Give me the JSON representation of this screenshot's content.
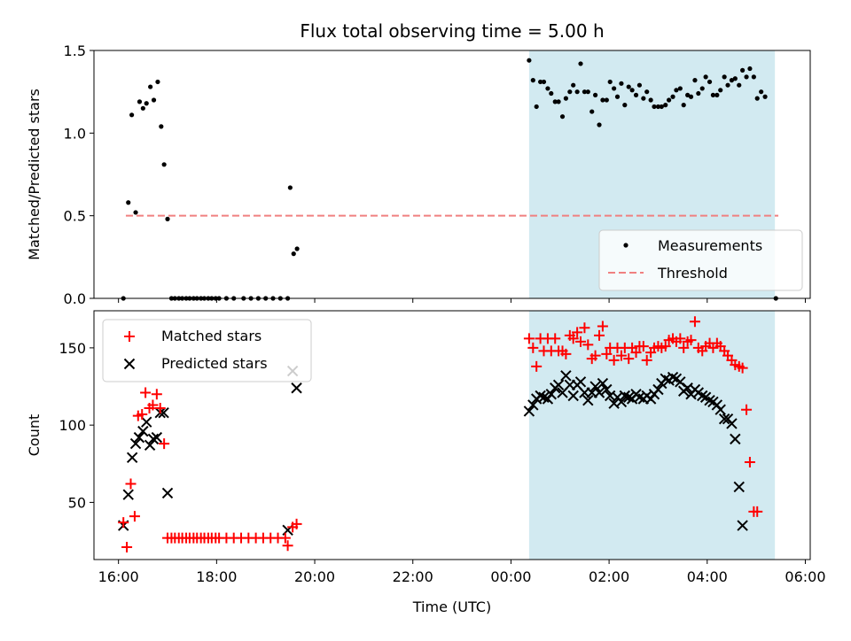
{
  "chart_data": {
    "type": "scatter",
    "title": "Flux total observing time = 5.00 h",
    "xlabel": "Time (UTC)",
    "x_unit": "hours since 16:00 UTC",
    "xlim": [
      -0.5,
      14.1
    ],
    "x_ticks": [
      {
        "v": 0,
        "label": "16:00"
      },
      {
        "v": 2,
        "label": "18:00"
      },
      {
        "v": 4,
        "label": "20:00"
      },
      {
        "v": 6,
        "label": "22:00"
      },
      {
        "v": 8,
        "label": "00:00"
      },
      {
        "v": 10,
        "label": "02:00"
      },
      {
        "v": 12,
        "label": "04:00"
      },
      {
        "v": 14,
        "label": "06:00"
      }
    ],
    "shaded_region": {
      "x_start": 8.37,
      "x_end": 13.38,
      "color": "#add8e6"
    },
    "top": {
      "ylabel": "Matched/Predicted stars",
      "ylim": [
        0,
        1.5
      ],
      "y_ticks": [
        {
          "v": 0,
          "label": "0.0"
        },
        {
          "v": 0.5,
          "label": "0.5"
        },
        {
          "v": 1.0,
          "label": "1.0"
        },
        {
          "v": 1.5,
          "label": "1.5"
        }
      ],
      "legend": [
        {
          "name": "Measurements",
          "marker": "dot"
        },
        {
          "name": "Threshold",
          "marker": "dashed-line"
        }
      ],
      "threshold": {
        "value": 0.5,
        "x_start": 0.15,
        "x_end": 13.45,
        "color": "#f08080"
      },
      "measurements": [
        [
          0.1,
          0.0
        ],
        [
          0.2,
          0.58
        ],
        [
          0.27,
          1.11
        ],
        [
          0.35,
          0.52
        ],
        [
          0.43,
          1.19
        ],
        [
          0.5,
          1.15
        ],
        [
          0.57,
          1.18
        ],
        [
          0.65,
          1.28
        ],
        [
          0.72,
          1.2
        ],
        [
          0.8,
          1.31
        ],
        [
          0.87,
          1.04
        ],
        [
          0.93,
          0.81
        ],
        [
          1.0,
          0.48
        ],
        [
          1.08,
          0.0
        ],
        [
          1.15,
          0.0
        ],
        [
          1.23,
          0.0
        ],
        [
          1.3,
          0.0
        ],
        [
          1.38,
          0.0
        ],
        [
          1.45,
          0.0
        ],
        [
          1.53,
          0.0
        ],
        [
          1.6,
          0.0
        ],
        [
          1.68,
          0.0
        ],
        [
          1.75,
          0.0
        ],
        [
          1.83,
          0.0
        ],
        [
          1.9,
          0.0
        ],
        [
          1.98,
          0.0
        ],
        [
          2.05,
          0.0
        ],
        [
          2.2,
          0.0
        ],
        [
          2.35,
          0.0
        ],
        [
          2.55,
          0.0
        ],
        [
          2.7,
          0.0
        ],
        [
          2.85,
          0.0
        ],
        [
          3.0,
          0.0
        ],
        [
          3.15,
          0.0
        ],
        [
          3.3,
          0.0
        ],
        [
          3.45,
          0.0
        ],
        [
          3.5,
          0.67
        ],
        [
          3.57,
          0.27
        ],
        [
          3.64,
          0.3
        ],
        [
          8.37,
          1.44
        ],
        [
          8.45,
          1.32
        ],
        [
          8.52,
          1.16
        ],
        [
          8.6,
          1.31
        ],
        [
          8.67,
          1.31
        ],
        [
          8.75,
          1.27
        ],
        [
          8.82,
          1.24
        ],
        [
          8.9,
          1.19
        ],
        [
          8.97,
          1.19
        ],
        [
          9.05,
          1.1
        ],
        [
          9.12,
          1.21
        ],
        [
          9.2,
          1.25
        ],
        [
          9.27,
          1.29
        ],
        [
          9.35,
          1.25
        ],
        [
          9.42,
          1.42
        ],
        [
          9.5,
          1.25
        ],
        [
          9.57,
          1.25
        ],
        [
          9.65,
          1.13
        ],
        [
          9.72,
          1.23
        ],
        [
          9.8,
          1.05
        ],
        [
          9.87,
          1.2
        ],
        [
          9.95,
          1.2
        ],
        [
          10.02,
          1.31
        ],
        [
          10.1,
          1.27
        ],
        [
          10.17,
          1.22
        ],
        [
          10.25,
          1.3
        ],
        [
          10.32,
          1.17
        ],
        [
          10.4,
          1.28
        ],
        [
          10.47,
          1.26
        ],
        [
          10.55,
          1.23
        ],
        [
          10.62,
          1.29
        ],
        [
          10.7,
          1.21
        ],
        [
          10.77,
          1.25
        ],
        [
          10.85,
          1.2
        ],
        [
          10.92,
          1.16
        ],
        [
          11.0,
          1.16
        ],
        [
          11.07,
          1.16
        ],
        [
          11.15,
          1.17
        ],
        [
          11.22,
          1.2
        ],
        [
          11.3,
          1.22
        ],
        [
          11.37,
          1.26
        ],
        [
          11.45,
          1.27
        ],
        [
          11.52,
          1.17
        ],
        [
          11.6,
          1.23
        ],
        [
          11.67,
          1.22
        ],
        [
          11.75,
          1.32
        ],
        [
          11.82,
          1.24
        ],
        [
          11.9,
          1.27
        ],
        [
          11.97,
          1.34
        ],
        [
          12.05,
          1.31
        ],
        [
          12.12,
          1.23
        ],
        [
          12.2,
          1.23
        ],
        [
          12.27,
          1.26
        ],
        [
          12.35,
          1.34
        ],
        [
          12.42,
          1.29
        ],
        [
          12.5,
          1.32
        ],
        [
          12.57,
          1.33
        ],
        [
          12.65,
          1.29
        ],
        [
          12.72,
          1.38
        ],
        [
          12.8,
          1.34
        ],
        [
          12.87,
          1.39
        ],
        [
          12.95,
          1.34
        ],
        [
          13.02,
          1.21
        ],
        [
          13.1,
          1.25
        ],
        [
          13.18,
          1.22
        ],
        [
          13.4,
          0.0
        ]
      ]
    },
    "bottom": {
      "ylabel": "Count",
      "ylim": [
        13,
        174
      ],
      "y_ticks": [
        {
          "v": 50,
          "label": "50"
        },
        {
          "v": 100,
          "label": "100"
        },
        {
          "v": 150,
          "label": "150"
        }
      ],
      "legend": [
        {
          "name": "Matched stars",
          "marker": "plus",
          "color": "#ff0000"
        },
        {
          "name": "Predicted stars",
          "marker": "x",
          "color": "#000000"
        }
      ],
      "matched": [
        [
          0.1,
          37
        ],
        [
          0.17,
          21
        ],
        [
          0.25,
          62
        ],
        [
          0.33,
          41
        ],
        [
          0.4,
          106
        ],
        [
          0.48,
          107
        ],
        [
          0.55,
          121
        ],
        [
          0.63,
          111
        ],
        [
          0.7,
          113
        ],
        [
          0.78,
          120
        ],
        [
          0.85,
          111
        ],
        [
          0.93,
          88
        ],
        [
          1.0,
          27
        ],
        [
          1.08,
          27
        ],
        [
          1.15,
          27
        ],
        [
          1.23,
          27
        ],
        [
          1.3,
          27
        ],
        [
          1.38,
          27
        ],
        [
          1.45,
          27
        ],
        [
          1.53,
          27
        ],
        [
          1.6,
          27
        ],
        [
          1.68,
          27
        ],
        [
          1.75,
          27
        ],
        [
          1.83,
          27
        ],
        [
          1.9,
          27
        ],
        [
          1.98,
          27
        ],
        [
          2.05,
          27
        ],
        [
          2.2,
          27
        ],
        [
          2.35,
          27
        ],
        [
          2.5,
          27
        ],
        [
          2.65,
          27
        ],
        [
          2.8,
          27
        ],
        [
          2.95,
          27
        ],
        [
          3.1,
          27
        ],
        [
          3.25,
          27
        ],
        [
          3.4,
          27
        ],
        [
          3.45,
          22
        ],
        [
          3.55,
          34
        ],
        [
          3.63,
          36
        ],
        [
          8.37,
          156
        ],
        [
          8.45,
          150
        ],
        [
          8.52,
          138
        ],
        [
          8.6,
          156
        ],
        [
          8.67,
          148
        ],
        [
          8.75,
          156
        ],
        [
          8.82,
          148
        ],
        [
          8.9,
          156
        ],
        [
          8.97,
          148
        ],
        [
          9.05,
          148
        ],
        [
          9.12,
          146
        ],
        [
          9.2,
          158
        ],
        [
          9.27,
          156
        ],
        [
          9.35,
          160
        ],
        [
          9.42,
          154
        ],
        [
          9.5,
          163
        ],
        [
          9.57,
          152
        ],
        [
          9.65,
          143
        ],
        [
          9.72,
          145
        ],
        [
          9.8,
          158
        ],
        [
          9.87,
          164
        ],
        [
          9.95,
          146
        ],
        [
          10.02,
          150
        ],
        [
          10.1,
          142
        ],
        [
          10.17,
          150
        ],
        [
          10.25,
          145
        ],
        [
          10.32,
          150
        ],
        [
          10.4,
          143
        ],
        [
          10.47,
          150
        ],
        [
          10.55,
          147
        ],
        [
          10.62,
          151
        ],
        [
          10.7,
          151
        ],
        [
          10.77,
          142
        ],
        [
          10.85,
          147
        ],
        [
          10.92,
          150
        ],
        [
          11.0,
          151
        ],
        [
          11.07,
          150
        ],
        [
          11.15,
          151
        ],
        [
          11.22,
          155
        ],
        [
          11.3,
          156
        ],
        [
          11.37,
          154
        ],
        [
          11.45,
          156
        ],
        [
          11.52,
          150
        ],
        [
          11.6,
          154
        ],
        [
          11.67,
          155
        ],
        [
          11.75,
          167
        ],
        [
          11.82,
          150
        ],
        [
          11.9,
          148
        ],
        [
          11.97,
          151
        ],
        [
          12.05,
          153
        ],
        [
          12.12,
          150
        ],
        [
          12.2,
          153
        ],
        [
          12.27,
          151
        ],
        [
          12.35,
          148
        ],
        [
          12.42,
          145
        ],
        [
          12.5,
          142
        ],
        [
          12.57,
          139
        ],
        [
          12.65,
          138
        ],
        [
          12.72,
          137
        ],
        [
          12.8,
          110
        ],
        [
          12.87,
          76
        ],
        [
          12.95,
          44
        ],
        [
          13.02,
          44
        ]
      ],
      "predicted": [
        [
          0.1,
          35
        ],
        [
          0.2,
          55
        ],
        [
          0.28,
          79
        ],
        [
          0.35,
          88
        ],
        [
          0.42,
          92
        ],
        [
          0.5,
          96
        ],
        [
          0.57,
          102
        ],
        [
          0.64,
          87
        ],
        [
          0.71,
          91
        ],
        [
          0.78,
          92
        ],
        [
          0.85,
          108
        ],
        [
          0.92,
          108
        ],
        [
          1.0,
          56
        ],
        [
          3.45,
          32
        ],
        [
          3.55,
          135
        ],
        [
          3.63,
          124
        ],
        [
          8.37,
          109
        ],
        [
          8.45,
          113
        ],
        [
          8.52,
          117
        ],
        [
          8.6,
          119
        ],
        [
          8.67,
          118
        ],
        [
          8.75,
          117
        ],
        [
          8.82,
          120
        ],
        [
          8.9,
          124
        ],
        [
          8.97,
          126
        ],
        [
          9.05,
          121
        ],
        [
          9.12,
          132
        ],
        [
          9.2,
          126
        ],
        [
          9.27,
          119
        ],
        [
          9.35,
          126
        ],
        [
          9.42,
          128
        ],
        [
          9.5,
          121
        ],
        [
          9.57,
          116
        ],
        [
          9.65,
          121
        ],
        [
          9.72,
          125
        ],
        [
          9.8,
          121
        ],
        [
          9.87,
          127
        ],
        [
          9.95,
          123
        ],
        [
          10.02,
          119
        ],
        [
          10.1,
          114
        ],
        [
          10.17,
          118
        ],
        [
          10.25,
          115
        ],
        [
          10.32,
          119
        ],
        [
          10.4,
          118
        ],
        [
          10.47,
          117
        ],
        [
          10.55,
          120
        ],
        [
          10.62,
          118
        ],
        [
          10.7,
          117
        ],
        [
          10.77,
          119
        ],
        [
          10.85,
          117
        ],
        [
          10.92,
          120
        ],
        [
          11.0,
          123
        ],
        [
          11.07,
          127
        ],
        [
          11.15,
          130
        ],
        [
          11.22,
          129
        ],
        [
          11.3,
          131
        ],
        [
          11.37,
          130
        ],
        [
          11.45,
          128
        ],
        [
          11.52,
          122
        ],
        [
          11.6,
          124
        ],
        [
          11.67,
          120
        ],
        [
          11.75,
          123
        ],
        [
          11.82,
          121
        ],
        [
          11.9,
          119
        ],
        [
          11.97,
          118
        ],
        [
          12.05,
          116
        ],
        [
          12.12,
          115
        ],
        [
          12.2,
          113
        ],
        [
          12.27,
          110
        ],
        [
          12.35,
          104
        ],
        [
          12.42,
          104
        ],
        [
          12.5,
          101
        ],
        [
          12.57,
          91
        ],
        [
          12.65,
          60
        ],
        [
          12.72,
          35
        ]
      ]
    }
  }
}
